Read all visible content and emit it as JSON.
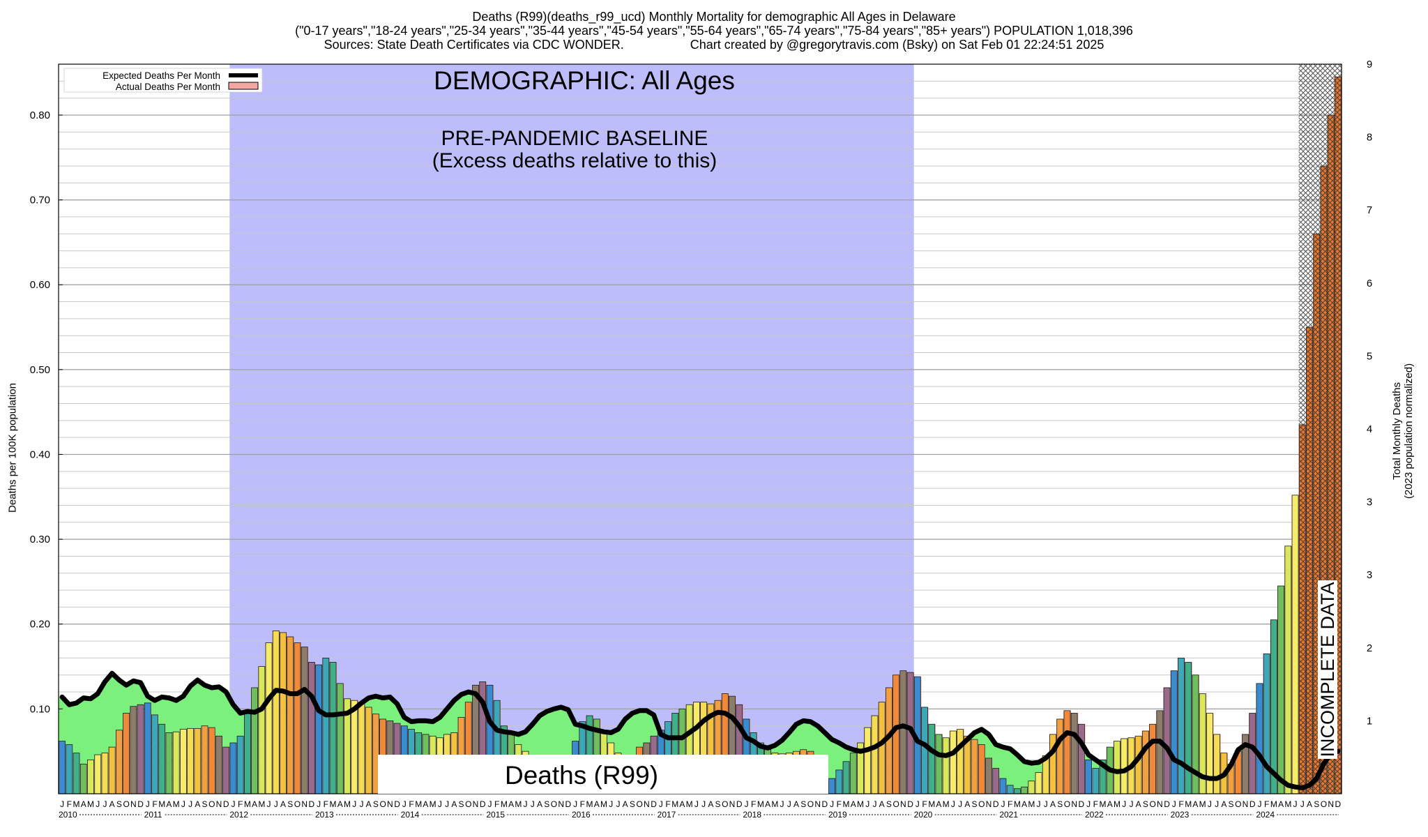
{
  "header": {
    "line1": "Deaths (R99)(deaths_r99_ucd) Monthly Mortality for demographic All Ages in Delaware",
    "line2": "(\"0-17 years\",\"18-24 years\",\"25-34 years\",\"35-44 years\",\"45-54 years\",\"55-64 years\",\"65-74 years\",\"75-84 years\",\"85+ years\") POPULATION 1,018,396",
    "line3_left": "Sources: State Death Certificates via CDC WONDER.",
    "line3_right": "Chart created by @gregorytravis.com (Bsky) on Sat Feb 01 22:24:51 2025"
  },
  "chart_data": {
    "type": "bar",
    "title": "DEMOGRAPHIC: All Ages",
    "baseline_label_line1": "PRE-PANDEMIC BASELINE",
    "baseline_label_line2": "(Excess deaths relative to this)",
    "cause_label": "Deaths (R99)",
    "incomplete_label": "INCOMPLETE DATA",
    "ylabel_left": "Deaths per 100K population",
    "ylabel_right_line1": "Total Monthly Deaths",
    "ylabel_right_line2": "(2023 population normalized)",
    "ylim": [
      0,
      0.86
    ],
    "yticks_left": [
      "0.10",
      "0.20",
      "0.30",
      "0.40",
      "0.50",
      "0.60",
      "0.70",
      "0.80"
    ],
    "yticks_left_values": [
      0.1,
      0.2,
      0.3,
      0.4,
      0.5,
      0.6,
      0.7,
      0.8
    ],
    "yticks_right": [
      "1",
      "2",
      "3",
      "3",
      "4",
      "5",
      "6",
      "7",
      "8",
      "9"
    ],
    "grid": true,
    "legend_position": "top-left",
    "legend": [
      {
        "label": "Expected Deaths Per Month",
        "color": "#000000"
      },
      {
        "label": "Actual Deaths Per Month",
        "color": "#f4a7a0"
      }
    ],
    "baseline_period": {
      "start": "2012-01",
      "end": "2019-12",
      "color": "#bdbdfb"
    },
    "incomplete_from": "2024-07",
    "month_letters": [
      "J",
      "F",
      "M",
      "A",
      "M",
      "J",
      "J",
      "A",
      "S",
      "O",
      "N",
      "D"
    ],
    "years": [
      "2010",
      "2011",
      "2012",
      "2013",
      "2014",
      "2015",
      "2016",
      "2017",
      "2018",
      "2019",
      "2020",
      "2021",
      "2022",
      "2023",
      "2024"
    ],
    "colors": {
      "excess": "#7cf07c",
      "deficit": "#6fd8a0",
      "actual_fill": "#f4a7a0",
      "expected_line": "#000000",
      "baseline": "#bdbdfb"
    },
    "series": [
      {
        "name": "Actual Deaths Per Month",
        "years": {
          "2010": [
            0.062,
            0.058,
            0.048,
            0.035,
            0.04,
            0.046,
            0.048,
            0.055,
            0.075,
            0.095,
            0.103,
            0.105
          ],
          "2011": [
            0.107,
            0.093,
            0.082,
            0.072,
            0.073,
            0.076,
            0.077,
            0.077,
            0.08,
            0.078,
            0.068,
            0.055
          ],
          "2012": [
            0.06,
            0.068,
            0.095,
            0.125,
            0.15,
            0.178,
            0.192,
            0.19,
            0.185,
            0.178,
            0.173,
            0.155
          ],
          "2013": [
            0.152,
            0.16,
            0.155,
            0.13,
            0.112,
            0.11,
            0.108,
            0.102,
            0.094,
            0.088,
            0.086,
            0.083
          ],
          "2014": [
            0.08,
            0.076,
            0.072,
            0.07,
            0.068,
            0.066,
            0.07,
            0.072,
            0.09,
            0.108,
            0.128,
            0.132
          ],
          "2015": [
            0.128,
            0.11,
            0.08,
            0.07,
            0.058,
            0.05,
            0.045,
            0.042,
            0.04,
            0.032,
            0.028,
            0.025
          ],
          "2016": [
            0.062,
            0.085,
            0.092,
            0.088,
            0.075,
            0.06,
            0.048,
            0.04,
            0.04,
            0.055,
            0.06,
            0.068
          ],
          "2017": [
            0.075,
            0.085,
            0.095,
            0.1,
            0.105,
            0.108,
            0.108,
            0.106,
            0.11,
            0.118,
            0.115,
            0.105
          ],
          "2018": [
            0.088,
            0.072,
            0.06,
            0.052,
            0.048,
            0.047,
            0.048,
            0.05,
            0.052,
            0.05,
            0.043,
            0.04
          ],
          "2019": [
            0.018,
            0.028,
            0.038,
            0.048,
            0.06,
            0.078,
            0.092,
            0.108,
            0.125,
            0.14,
            0.145,
            0.143
          ],
          "2020": [
            0.138,
            0.102,
            0.082,
            0.07,
            0.066,
            0.074,
            0.076,
            0.068,
            0.064,
            0.058,
            0.042,
            0.03
          ],
          "2021": [
            0.018,
            0.01,
            0.006,
            0.008,
            0.015,
            0.025,
            0.045,
            0.07,
            0.088,
            0.098,
            0.095,
            0.082
          ],
          "2022": [
            0.04,
            0.03,
            0.04,
            0.055,
            0.062,
            0.065,
            0.066,
            0.068,
            0.074,
            0.082,
            0.098,
            0.125
          ],
          "2023": [
            0.145,
            0.16,
            0.155,
            0.14,
            0.118,
            0.095,
            0.07,
            0.048,
            0.035,
            0.05,
            0.07,
            0.095
          ],
          "2024": [
            0.13,
            0.165,
            0.205,
            0.245,
            0.292,
            0.352,
            0.435,
            0.55,
            0.66,
            0.74,
            0.8,
            0.845
          ]
        }
      },
      {
        "name": "Expected Deaths Per Month",
        "years": {
          "2010": [
            0.114,
            0.105,
            0.107,
            0.113,
            0.112,
            0.118,
            0.132,
            0.142,
            0.134,
            0.128,
            0.133,
            0.131
          ],
          "2011": [
            0.115,
            0.11,
            0.114,
            0.113,
            0.11,
            0.115,
            0.127,
            0.134,
            0.128,
            0.125,
            0.126,
            0.12
          ],
          "2012": [
            0.105,
            0.095,
            0.097,
            0.096,
            0.1,
            0.112,
            0.122,
            0.121,
            0.118,
            0.118,
            0.123,
            0.115
          ],
          "2013": [
            0.098,
            0.093,
            0.093,
            0.094,
            0.095,
            0.1,
            0.107,
            0.113,
            0.115,
            0.113,
            0.114,
            0.106
          ],
          "2014": [
            0.09,
            0.085,
            0.086,
            0.086,
            0.085,
            0.09,
            0.1,
            0.11,
            0.117,
            0.12,
            0.118,
            0.108
          ],
          "2015": [
            0.085,
            0.075,
            0.073,
            0.072,
            0.07,
            0.073,
            0.082,
            0.092,
            0.097,
            0.1,
            0.102,
            0.099
          ],
          "2016": [
            0.082,
            0.08,
            0.077,
            0.075,
            0.073,
            0.072,
            0.076,
            0.088,
            0.095,
            0.098,
            0.098,
            0.093
          ],
          "2017": [
            0.07,
            0.066,
            0.066,
            0.066,
            0.072,
            0.078,
            0.086,
            0.092,
            0.096,
            0.095,
            0.09,
            0.08
          ],
          "2018": [
            0.066,
            0.062,
            0.056,
            0.054,
            0.057,
            0.063,
            0.072,
            0.082,
            0.086,
            0.085,
            0.08,
            0.072
          ],
          "2019": [
            0.064,
            0.06,
            0.055,
            0.052,
            0.05,
            0.052,
            0.055,
            0.06,
            0.068,
            0.078,
            0.08,
            0.077
          ],
          "2020": [
            0.062,
            0.058,
            0.051,
            0.046,
            0.045,
            0.048,
            0.056,
            0.064,
            0.072,
            0.076,
            0.07,
            0.058
          ],
          "2021": [
            0.055,
            0.053,
            0.046,
            0.038,
            0.036,
            0.037,
            0.042,
            0.05,
            0.064,
            0.072,
            0.07,
            0.06
          ],
          "2022": [
            0.046,
            0.04,
            0.034,
            0.028,
            0.026,
            0.027,
            0.032,
            0.042,
            0.054,
            0.062,
            0.062,
            0.054
          ],
          "2023": [
            0.04,
            0.036,
            0.03,
            0.025,
            0.02,
            0.018,
            0.018,
            0.022,
            0.034,
            0.052,
            0.058,
            0.055
          ],
          "2024": [
            0.045,
            0.032,
            0.024,
            0.016,
            0.01,
            0.008,
            0.007,
            0.01,
            0.018,
            0.035,
            0.048,
            0.05
          ]
        }
      }
    ]
  }
}
